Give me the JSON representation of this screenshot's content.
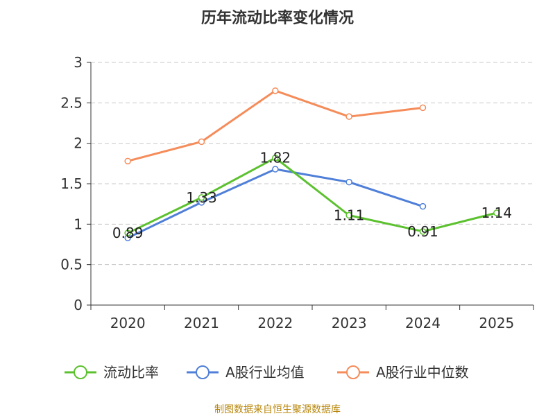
{
  "chart_data": {
    "type": "line",
    "title": "历年流动比率变化情况",
    "categories": [
      "2020",
      "2021",
      "2022",
      "2023",
      "2024",
      "2025"
    ],
    "ylim": [
      0,
      3
    ],
    "yticks": [
      0,
      0.5,
      1,
      1.5,
      2,
      2.5,
      3
    ],
    "ytick_labels": [
      "0",
      "0.5",
      "1",
      "1.5",
      "2",
      "2.5",
      "3"
    ],
    "grid": true,
    "legend_position": "bottom",
    "series": [
      {
        "name": "流动比率",
        "color": "#5cc12f",
        "values": [
          0.89,
          1.33,
          1.82,
          1.11,
          0.91,
          1.14
        ],
        "labels": [
          "0.89",
          "1.33",
          "1.82",
          "1.11",
          "0.91",
          "1.14"
        ]
      },
      {
        "name": "A股行业均值",
        "color": "#4f7fd8",
        "values": [
          0.83,
          1.27,
          1.68,
          1.52,
          1.22,
          null
        ]
      },
      {
        "name": "A股行业中位数",
        "color": "#f58c5a",
        "values": [
          1.78,
          2.02,
          2.65,
          2.33,
          2.44,
          null
        ]
      }
    ]
  },
  "footer": {
    "source": "制图数据来自恒生聚源数据库"
  }
}
